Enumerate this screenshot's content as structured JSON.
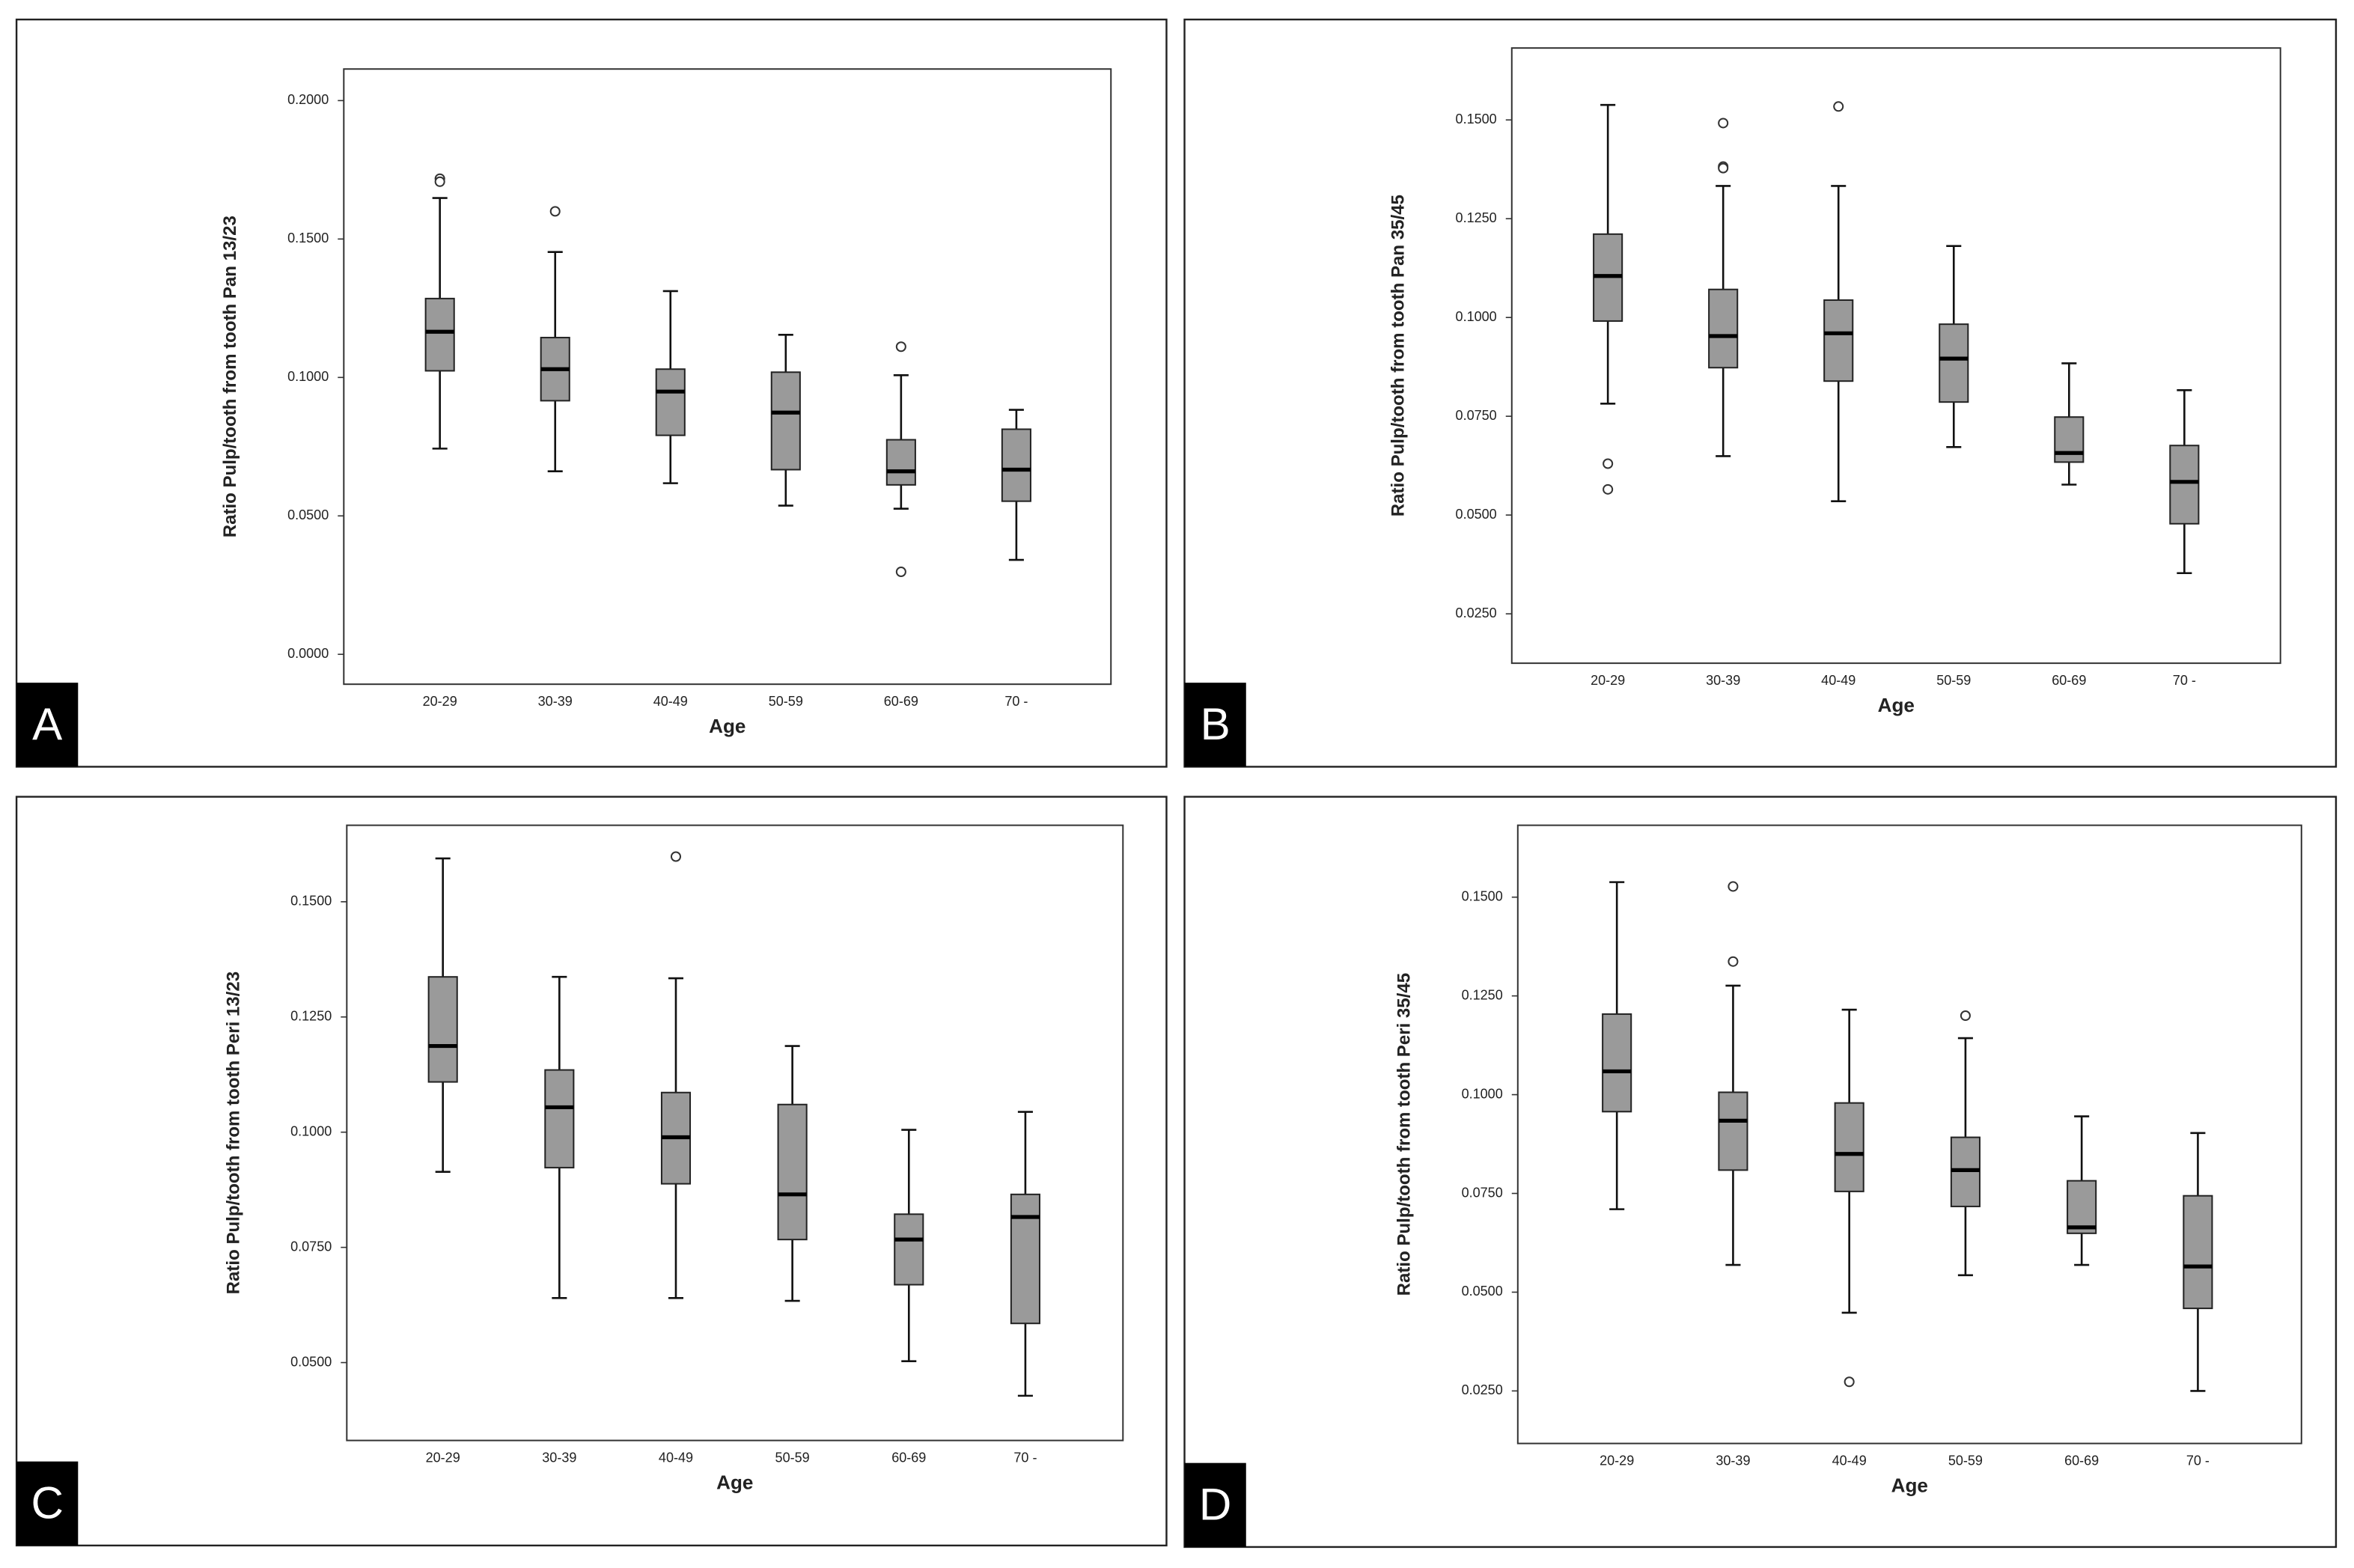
{
  "chart_data": [
    {
      "type": "box",
      "panel": "A",
      "x_label": "Age",
      "y_label": "Ratio Pulp/tooth from tooth Pan 13/23",
      "box_color": "#9a9a9a",
      "categories": [
        "20-29",
        "30-39",
        "40-49",
        "50-59",
        "60-69",
        "70 -"
      ],
      "ylim": [
        -0.0108,
        0.2114
      ],
      "yticks": [
        {
          "value": 0,
          "label": "0.0000"
        },
        {
          "value": 0.05,
          "label": "0.0500"
        },
        {
          "value": 0.1,
          "label": "0.1000"
        },
        {
          "value": 0.15,
          "label": "0.1500"
        },
        {
          "value": 0.2,
          "label": "0.2000"
        }
      ],
      "boxes": [
        {
          "min": 0.0743,
          "q1": 0.1024,
          "median": 0.1165,
          "q3": 0.1285,
          "max": 0.1648,
          "outliers": [
            0.1718,
            0.1707
          ]
        },
        {
          "min": 0.0661,
          "q1": 0.0916,
          "median": 0.103,
          "q3": 0.1144,
          "max": 0.1453,
          "outliers": [
            0.16
          ]
        },
        {
          "min": 0.0618,
          "q1": 0.0791,
          "median": 0.0949,
          "q3": 0.103,
          "max": 0.1312,
          "outliers": []
        },
        {
          "min": 0.0537,
          "q1": 0.0667,
          "median": 0.0873,
          "q3": 0.1019,
          "max": 0.1154,
          "outliers": []
        },
        {
          "min": 0.0526,
          "q1": 0.0612,
          "median": 0.0661,
          "q3": 0.0775,
          "max": 0.1008,
          "outliers": [
            0.1111,
            0.0298
          ]
        },
        {
          "min": 0.0341,
          "q1": 0.0553,
          "median": 0.0667,
          "q3": 0.0813,
          "max": 0.0883,
          "outliers": []
        }
      ]
    },
    {
      "type": "box",
      "panel": "B",
      "x_label": "Age",
      "y_label": "Ratio Pulp/tooth from tooth Pan 35/45",
      "box_color": "#9a9a9a",
      "categories": [
        "20-29",
        "30-39",
        "40-49",
        "50-59",
        "60-69",
        "70 -"
      ],
      "ylim": [
        0.0125,
        0.1682
      ],
      "yticks": [
        {
          "value": 0.025,
          "label": "0.0250"
        },
        {
          "value": 0.05,
          "label": "0.0500"
        },
        {
          "value": 0.075,
          "label": "0.0750"
        },
        {
          "value": 0.1,
          "label": "0.1000"
        },
        {
          "value": 0.125,
          "label": "0.1250"
        },
        {
          "value": 0.15,
          "label": "0.1500"
        }
      ],
      "boxes": [
        {
          "min": 0.0782,
          "q1": 0.0991,
          "median": 0.1105,
          "q3": 0.1211,
          "max": 0.1538,
          "outliers": [
            0.063,
            0.0565
          ]
        },
        {
          "min": 0.0649,
          "q1": 0.0873,
          "median": 0.0953,
          "q3": 0.1071,
          "max": 0.1333,
          "outliers": [
            0.1492,
            0.1382,
            0.1378
          ]
        },
        {
          "min": 0.0535,
          "q1": 0.0839,
          "median": 0.096,
          "q3": 0.1044,
          "max": 0.1333,
          "outliers": [
            0.1534
          ]
        },
        {
          "min": 0.0672,
          "q1": 0.0786,
          "median": 0.0896,
          "q3": 0.0983,
          "max": 0.1181,
          "outliers": []
        },
        {
          "min": 0.0577,
          "q1": 0.0634,
          "median": 0.0657,
          "q3": 0.0748,
          "max": 0.0884,
          "outliers": []
        },
        {
          "min": 0.0353,
          "q1": 0.0478,
          "median": 0.0584,
          "q3": 0.0676,
          "max": 0.0816,
          "outliers": []
        }
      ]
    },
    {
      "type": "box",
      "panel": "C",
      "x_label": "Age",
      "y_label": "Ratio Pulp/tooth from tooth Peri 13/23",
      "box_color": "#9a9a9a",
      "categories": [
        "20-29",
        "30-39",
        "40-49",
        "50-59",
        "60-69",
        "70 -"
      ],
      "ylim": [
        0.0331,
        0.1666
      ],
      "yticks": [
        {
          "value": 0.05,
          "label": "0.0500"
        },
        {
          "value": 0.075,
          "label": "0.0750"
        },
        {
          "value": 0.1,
          "label": "0.1000"
        },
        {
          "value": 0.125,
          "label": "0.1250"
        },
        {
          "value": 0.15,
          "label": "0.1500"
        }
      ],
      "boxes": [
        {
          "min": 0.0914,
          "q1": 0.1109,
          "median": 0.1187,
          "q3": 0.1337,
          "max": 0.1594,
          "outliers": []
        },
        {
          "min": 0.064,
          "q1": 0.0923,
          "median": 0.1054,
          "q3": 0.1135,
          "max": 0.1337,
          "outliers": []
        },
        {
          "min": 0.064,
          "q1": 0.0888,
          "median": 0.0989,
          "q3": 0.1086,
          "max": 0.1334,
          "outliers": [
            0.1598
          ]
        },
        {
          "min": 0.0634,
          "q1": 0.0767,
          "median": 0.0865,
          "q3": 0.106,
          "max": 0.1187,
          "outliers": []
        },
        {
          "min": 0.0503,
          "q1": 0.0669,
          "median": 0.0767,
          "q3": 0.0822,
          "max": 0.1005,
          "outliers": []
        },
        {
          "min": 0.0428,
          "q1": 0.0585,
          "median": 0.0816,
          "q3": 0.0865,
          "max": 0.1044,
          "outliers": []
        }
      ]
    },
    {
      "type": "box",
      "panel": "D",
      "x_label": "Age",
      "y_label": "Ratio Pulp/tooth from tooth Peri 35/45",
      "box_color": "#9a9a9a",
      "categories": [
        "20-29",
        "30-39",
        "40-49",
        "50-59",
        "60-69",
        "70 -"
      ],
      "ylim": [
        0.0117,
        0.1682
      ],
      "yticks": [
        {
          "value": 0.025,
          "label": "0.0250"
        },
        {
          "value": 0.05,
          "label": "0.0500"
        },
        {
          "value": 0.075,
          "label": "0.0750"
        },
        {
          "value": 0.1,
          "label": "0.1000"
        },
        {
          "value": 0.125,
          "label": "0.1250"
        },
        {
          "value": 0.15,
          "label": "0.1500"
        }
      ],
      "boxes": [
        {
          "min": 0.071,
          "q1": 0.0957,
          "median": 0.1059,
          "q3": 0.1204,
          "max": 0.1538,
          "outliers": []
        },
        {
          "min": 0.0569,
          "q1": 0.0809,
          "median": 0.0934,
          "q3": 0.1006,
          "max": 0.1276,
          "outliers": [
            0.1527,
            0.1337
          ]
        },
        {
          "min": 0.0448,
          "q1": 0.0755,
          "median": 0.085,
          "q3": 0.0979,
          "max": 0.1215,
          "outliers": [
            0.0273
          ]
        },
        {
          "min": 0.0543,
          "q1": 0.0717,
          "median": 0.0809,
          "q3": 0.0892,
          "max": 0.1143,
          "outliers": [
            0.12
          ]
        },
        {
          "min": 0.0569,
          "q1": 0.0649,
          "median": 0.0664,
          "q3": 0.0782,
          "max": 0.0945,
          "outliers": []
        },
        {
          "min": 0.025,
          "q1": 0.0459,
          "median": 0.0565,
          "q3": 0.0744,
          "max": 0.0903,
          "outliers": []
        }
      ]
    }
  ]
}
